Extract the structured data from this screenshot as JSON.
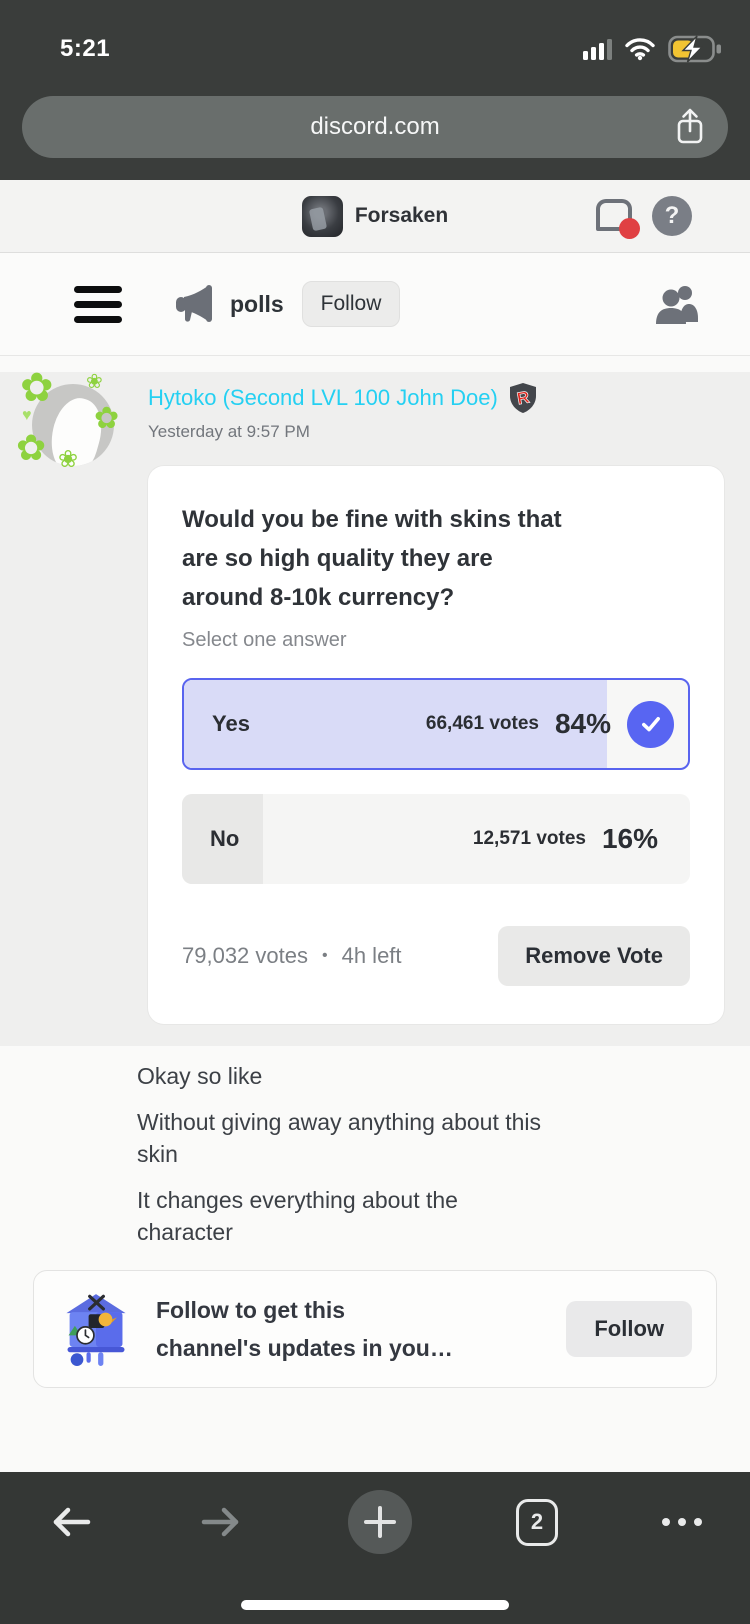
{
  "status_bar": {
    "time": "5:21"
  },
  "browser": {
    "url": "discord.com",
    "tab_count": "2"
  },
  "discord_header": {
    "server_name": "Forsaken"
  },
  "channel_bar": {
    "channel_name": "polls",
    "follow_button": "Follow"
  },
  "message": {
    "username": "Hytoko (Second LVL 100 John Doe)",
    "timestamp": "Yesterday at 9:57 PM",
    "badge": "R"
  },
  "poll": {
    "question": "Would you be fine with skins that\nare so high quality they are\naround 8-10k currency?",
    "instruction": "Select one answer",
    "options": [
      {
        "label": "Yes",
        "votes": "66,461 votes",
        "percent": "84%",
        "fill": 84,
        "selected": true
      },
      {
        "label": "No",
        "votes": "12,571 votes",
        "percent": "16%",
        "fill": 16,
        "selected": false
      }
    ],
    "total_votes": "79,032 votes",
    "separator": "•",
    "time_left": "4h left",
    "remove_vote_button": "Remove Vote"
  },
  "messages": [
    "Okay so like",
    "Without giving away anything about this\nskin",
    "It changes everything about the\ncharacter"
  ],
  "follow_banner": {
    "text": "Follow to get this\nchannel's updates in you…",
    "button": "Follow"
  },
  "colors": {
    "blurple": "#5865f2",
    "poll_fill_selected": "#d9dbf7",
    "username_cyan": "#25d0f2",
    "notification_red": "#e04043",
    "battery_yellow": "#f2c432"
  }
}
